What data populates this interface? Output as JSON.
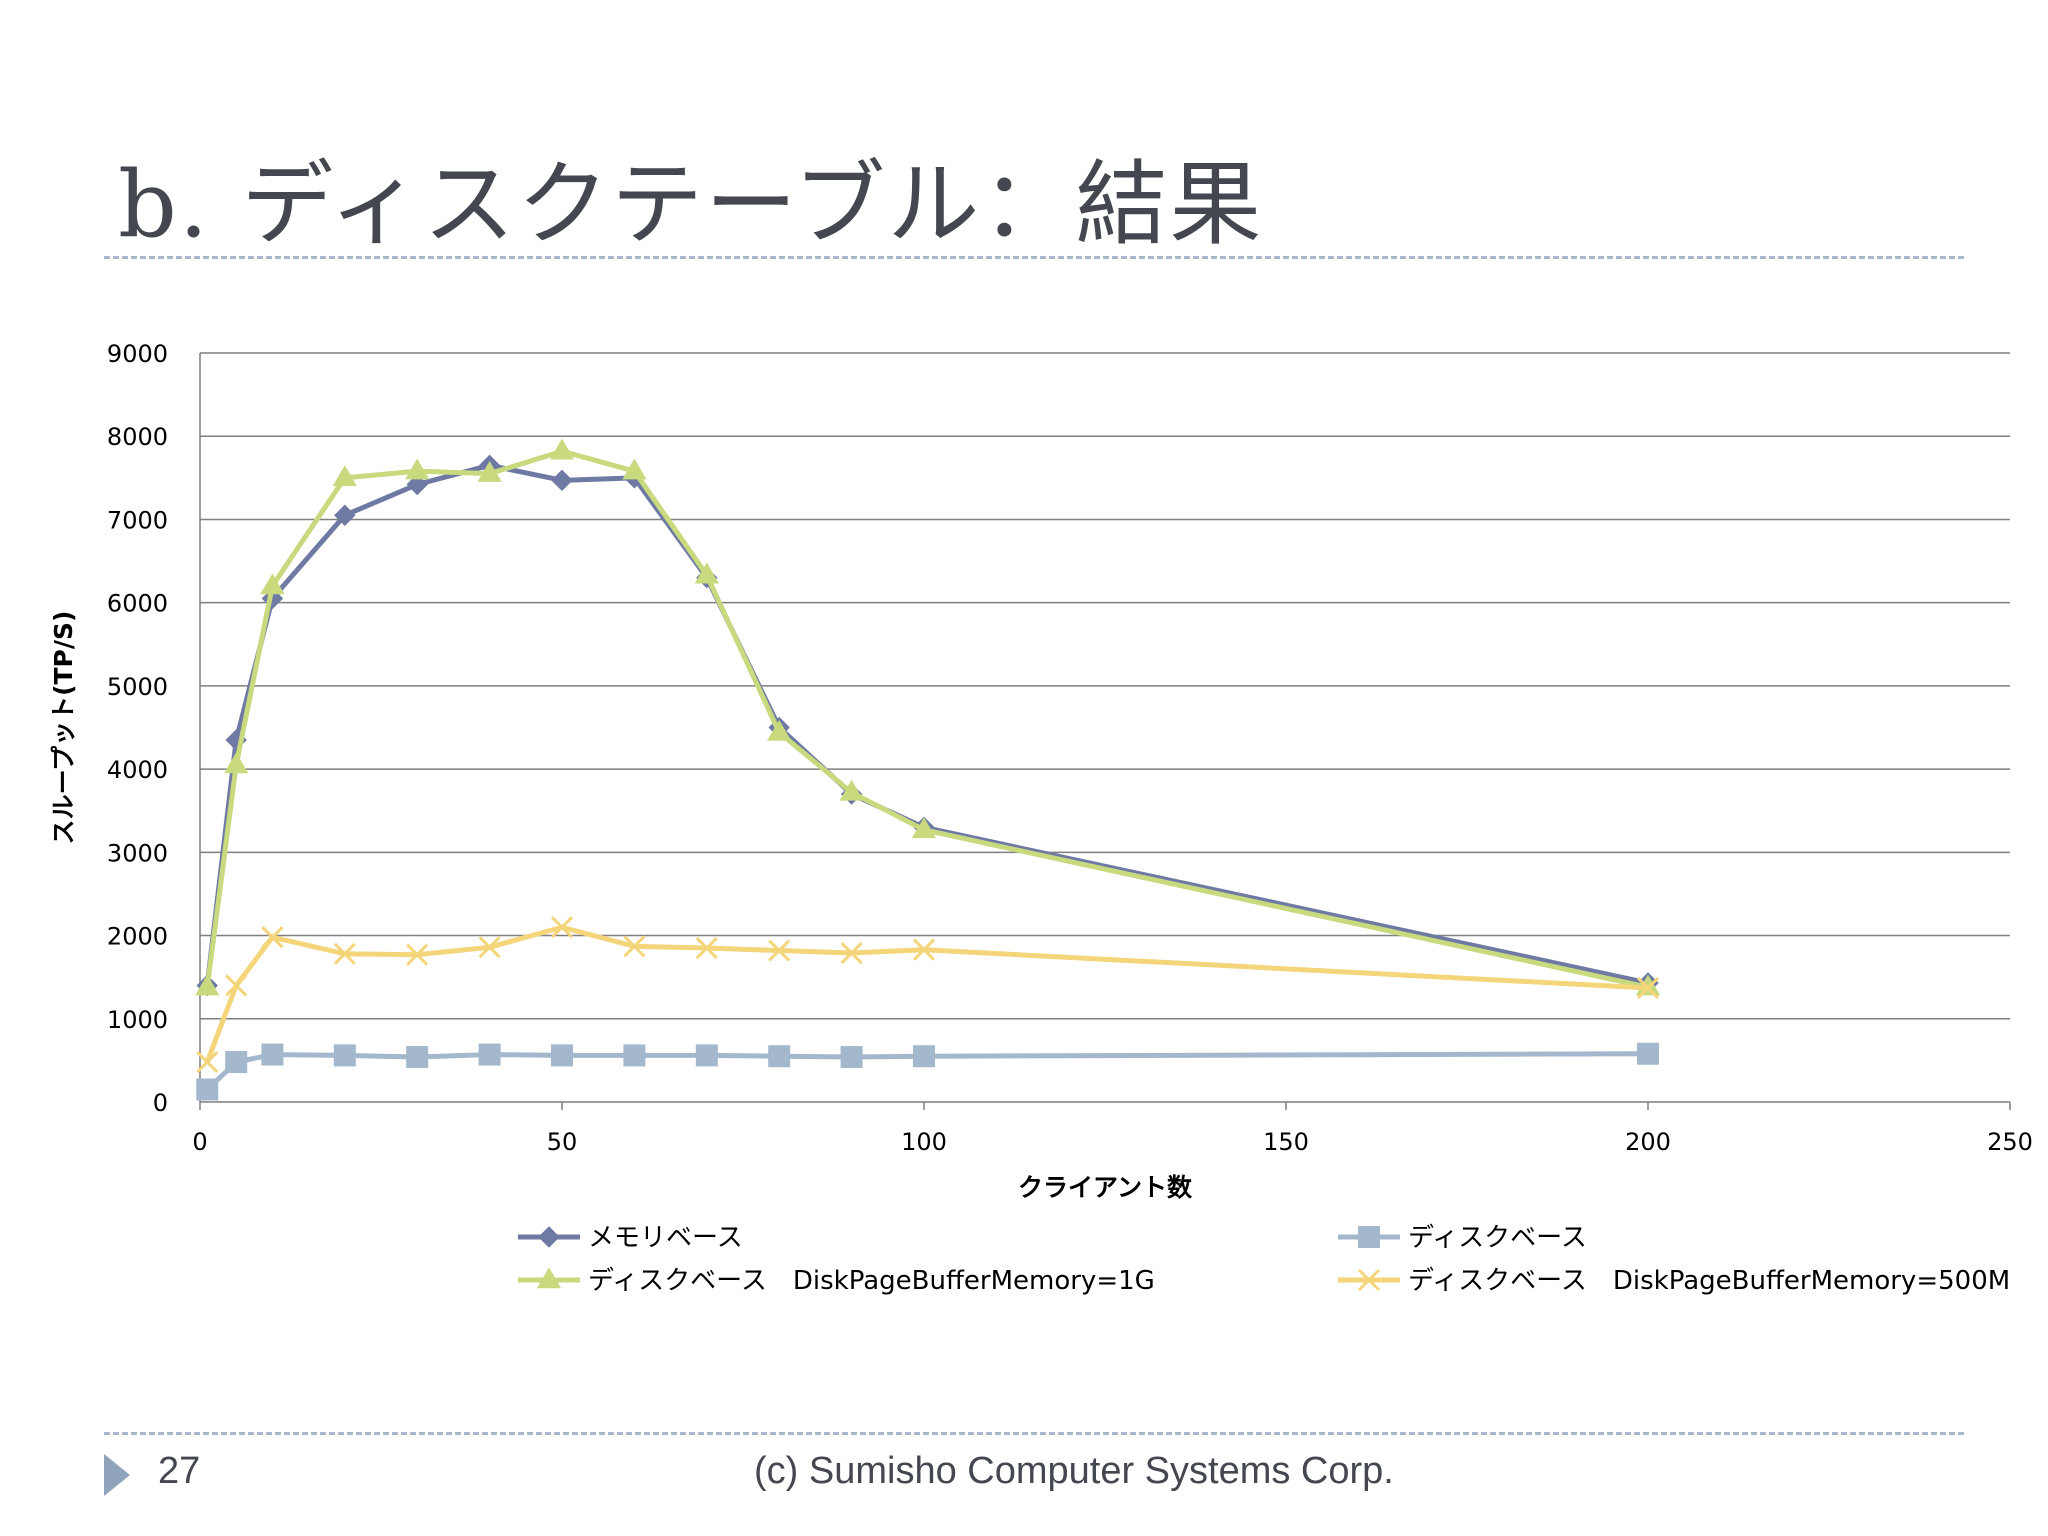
{
  "slide": {
    "title": "b. ディスクテーブル：結果",
    "page_number": "27",
    "copyright": "(c) Sumisho Computer Systems Corp."
  },
  "colors": {
    "memory": "#6e7aa3",
    "disk": "#a3b8cc",
    "disk_1g": "#c8d97e",
    "disk_500m": "#f5d57a",
    "grid": "#7f7f7f",
    "text": "#000000"
  },
  "chart_data": {
    "type": "line",
    "xlabel": "クライアント数",
    "ylabel": "スループット(TP/S)",
    "xlim": [
      0,
      250
    ],
    "ylim": [
      0,
      9000
    ],
    "x_ticks": [
      0,
      50,
      100,
      150,
      200,
      250
    ],
    "y_ticks": [
      0,
      1000,
      2000,
      3000,
      4000,
      5000,
      6000,
      7000,
      8000,
      9000
    ],
    "grid": "horizontal",
    "legend_position": "bottom",
    "x": [
      1,
      5,
      10,
      20,
      30,
      40,
      50,
      60,
      70,
      80,
      90,
      100,
      200
    ],
    "series": [
      {
        "name": "メモリベース",
        "marker": "diamond",
        "color_key": "memory",
        "values": [
          1400,
          4350,
          6050,
          7050,
          7420,
          7650,
          7470,
          7500,
          6300,
          4500,
          3700,
          3300,
          1430
        ]
      },
      {
        "name": "ディスクベース",
        "marker": "square",
        "color_key": "disk",
        "values": [
          150,
          480,
          570,
          560,
          540,
          570,
          560,
          560,
          560,
          550,
          540,
          550,
          580
        ]
      },
      {
        "name": "ディスクベース　DiskPageBufferMemory=1G",
        "marker": "triangle",
        "color_key": "disk_1g",
        "values": [
          1380,
          4050,
          6200,
          7500,
          7580,
          7550,
          7820,
          7580,
          6330,
          4440,
          3720,
          3270,
          1380
        ]
      },
      {
        "name": "ディスクベース　DiskPageBufferMemory=500M",
        "marker": "x",
        "color_key": "disk_500m",
        "values": [
          480,
          1400,
          1980,
          1780,
          1770,
          1860,
          2100,
          1870,
          1850,
          1820,
          1790,
          1830,
          1370
        ]
      }
    ]
  }
}
